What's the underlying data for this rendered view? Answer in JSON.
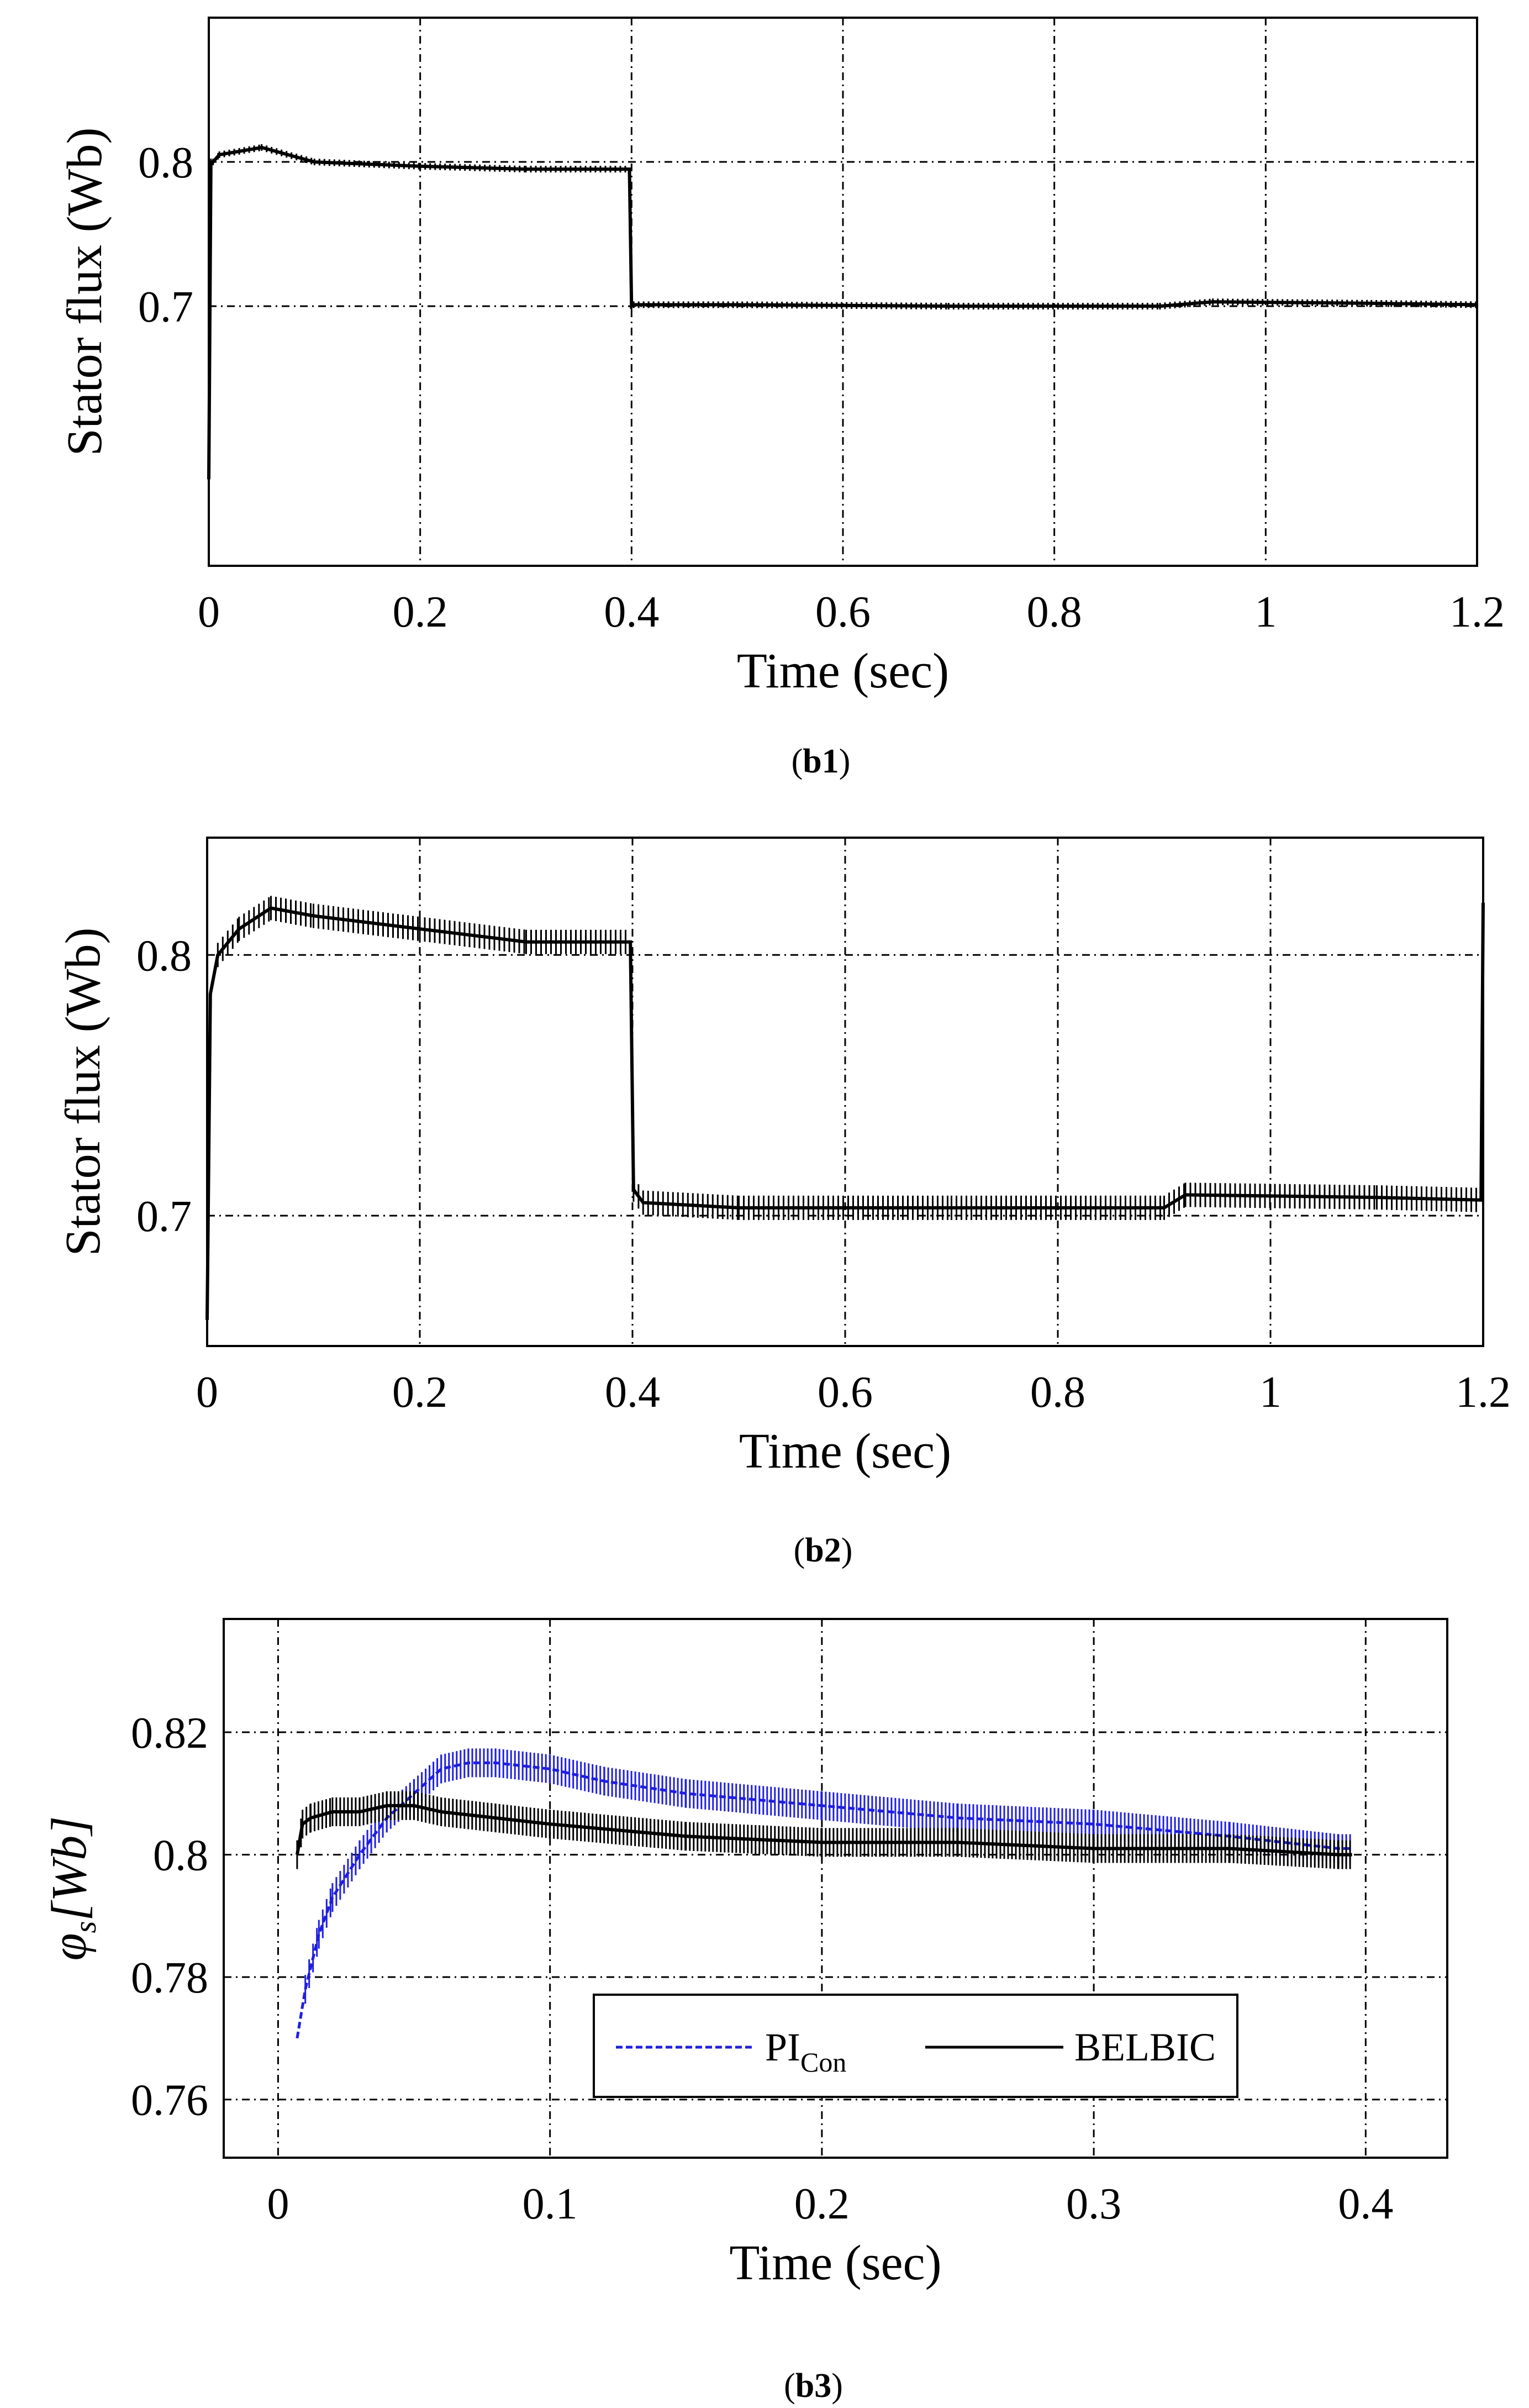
{
  "chart_data": [
    {
      "type": "line",
      "caption": {
        "open": "(",
        "label": "b1",
        "close": ")"
      },
      "xlabel": "Time (sec)",
      "ylabel": "Stator flux (Wb)",
      "xlim": [
        0,
        1.2
      ],
      "ylim": [
        0.52,
        0.9
      ],
      "xticks": [
        "0",
        "0.2",
        "0.4",
        "0.6",
        "0.8",
        "1",
        "1.2"
      ],
      "yticks": [
        "0.7",
        "0.8"
      ],
      "grid": true,
      "series": [
        {
          "name": "Stator flux",
          "color": "#000000",
          "x": [
            0,
            0.002,
            0.004,
            0.01,
            0.05,
            0.1,
            0.2,
            0.3,
            0.398,
            0.4,
            0.402,
            0.5,
            0.7,
            0.9,
            0.95,
            1.1,
            1.2
          ],
          "y": [
            0.58,
            0.8,
            0.8,
            0.805,
            0.81,
            0.8,
            0.797,
            0.795,
            0.795,
            0.7,
            0.701,
            0.701,
            0.7,
            0.7,
            0.703,
            0.702,
            0.701
          ]
        }
      ]
    },
    {
      "type": "line",
      "caption": {
        "open": "(",
        "label": "b2",
        "close": ")"
      },
      "xlabel": "Time (sec)",
      "ylabel": "Stator flux (Wb)",
      "xlim": [
        0,
        1.2
      ],
      "ylim": [
        0.65,
        0.845
      ],
      "xticks": [
        "0",
        "0.2",
        "0.4",
        "0.6",
        "0.8",
        "1",
        "1.2"
      ],
      "yticks": [
        "0.7",
        "0.8"
      ],
      "grid": true,
      "series": [
        {
          "name": "Stator flux",
          "color": "#000000",
          "x": [
            0,
            0.003,
            0.01,
            0.03,
            0.06,
            0.1,
            0.2,
            0.3,
            0.398,
            0.401,
            0.41,
            0.5,
            0.7,
            0.9,
            0.92,
            1.1,
            1.198,
            1.2
          ],
          "y": [
            0.66,
            0.785,
            0.8,
            0.81,
            0.818,
            0.815,
            0.81,
            0.805,
            0.805,
            0.71,
            0.705,
            0.703,
            0.703,
            0.703,
            0.708,
            0.707,
            0.706,
            0.82
          ]
        }
      ]
    },
    {
      "type": "line",
      "caption": {
        "open": "(",
        "label": "b3",
        "close": ")"
      },
      "xlabel": "Time (sec)",
      "ylabel": "φs[Wb]",
      "ylabel_main": "φ",
      "ylabel_sub": "s",
      "ylabel_rest": "[Wb]",
      "xlim": [
        -0.02,
        0.43
      ],
      "ylim": [
        0.7505,
        0.8385
      ],
      "xticks": [
        "0",
        "0.1",
        "0.2",
        "0.3",
        "0.4"
      ],
      "yticks": [
        "0.76",
        "0.78",
        "0.8",
        "0.82"
      ],
      "grid": true,
      "legend": {
        "position": "lower-center",
        "items": [
          {
            "label": "PI",
            "sub": "Con",
            "color": "#1f1fe0",
            "style": "dashed"
          },
          {
            "label": "BELBIC",
            "sub": "",
            "color": "#000000",
            "style": "solid"
          }
        ]
      },
      "series": [
        {
          "name": "PI_Con",
          "color": "#1f1fe0",
          "x": [
            0.007,
            0.01,
            0.015,
            0.02,
            0.03,
            0.04,
            0.05,
            0.06,
            0.07,
            0.08,
            0.1,
            0.12,
            0.15,
            0.2,
            0.25,
            0.3,
            0.35,
            0.39,
            0.395
          ],
          "y": [
            0.77,
            0.778,
            0.787,
            0.793,
            0.8,
            0.806,
            0.81,
            0.814,
            0.815,
            0.815,
            0.814,
            0.812,
            0.81,
            0.808,
            0.806,
            0.805,
            0.803,
            0.801,
            0.801
          ]
        },
        {
          "name": "BELBIC",
          "color": "#000000",
          "x": [
            0.007,
            0.009,
            0.012,
            0.02,
            0.03,
            0.04,
            0.05,
            0.06,
            0.08,
            0.1,
            0.15,
            0.2,
            0.25,
            0.3,
            0.35,
            0.39,
            0.395
          ],
          "y": [
            0.8,
            0.805,
            0.806,
            0.807,
            0.807,
            0.808,
            0.808,
            0.807,
            0.806,
            0.805,
            0.803,
            0.802,
            0.802,
            0.801,
            0.801,
            0.8,
            0.8
          ]
        }
      ]
    }
  ]
}
